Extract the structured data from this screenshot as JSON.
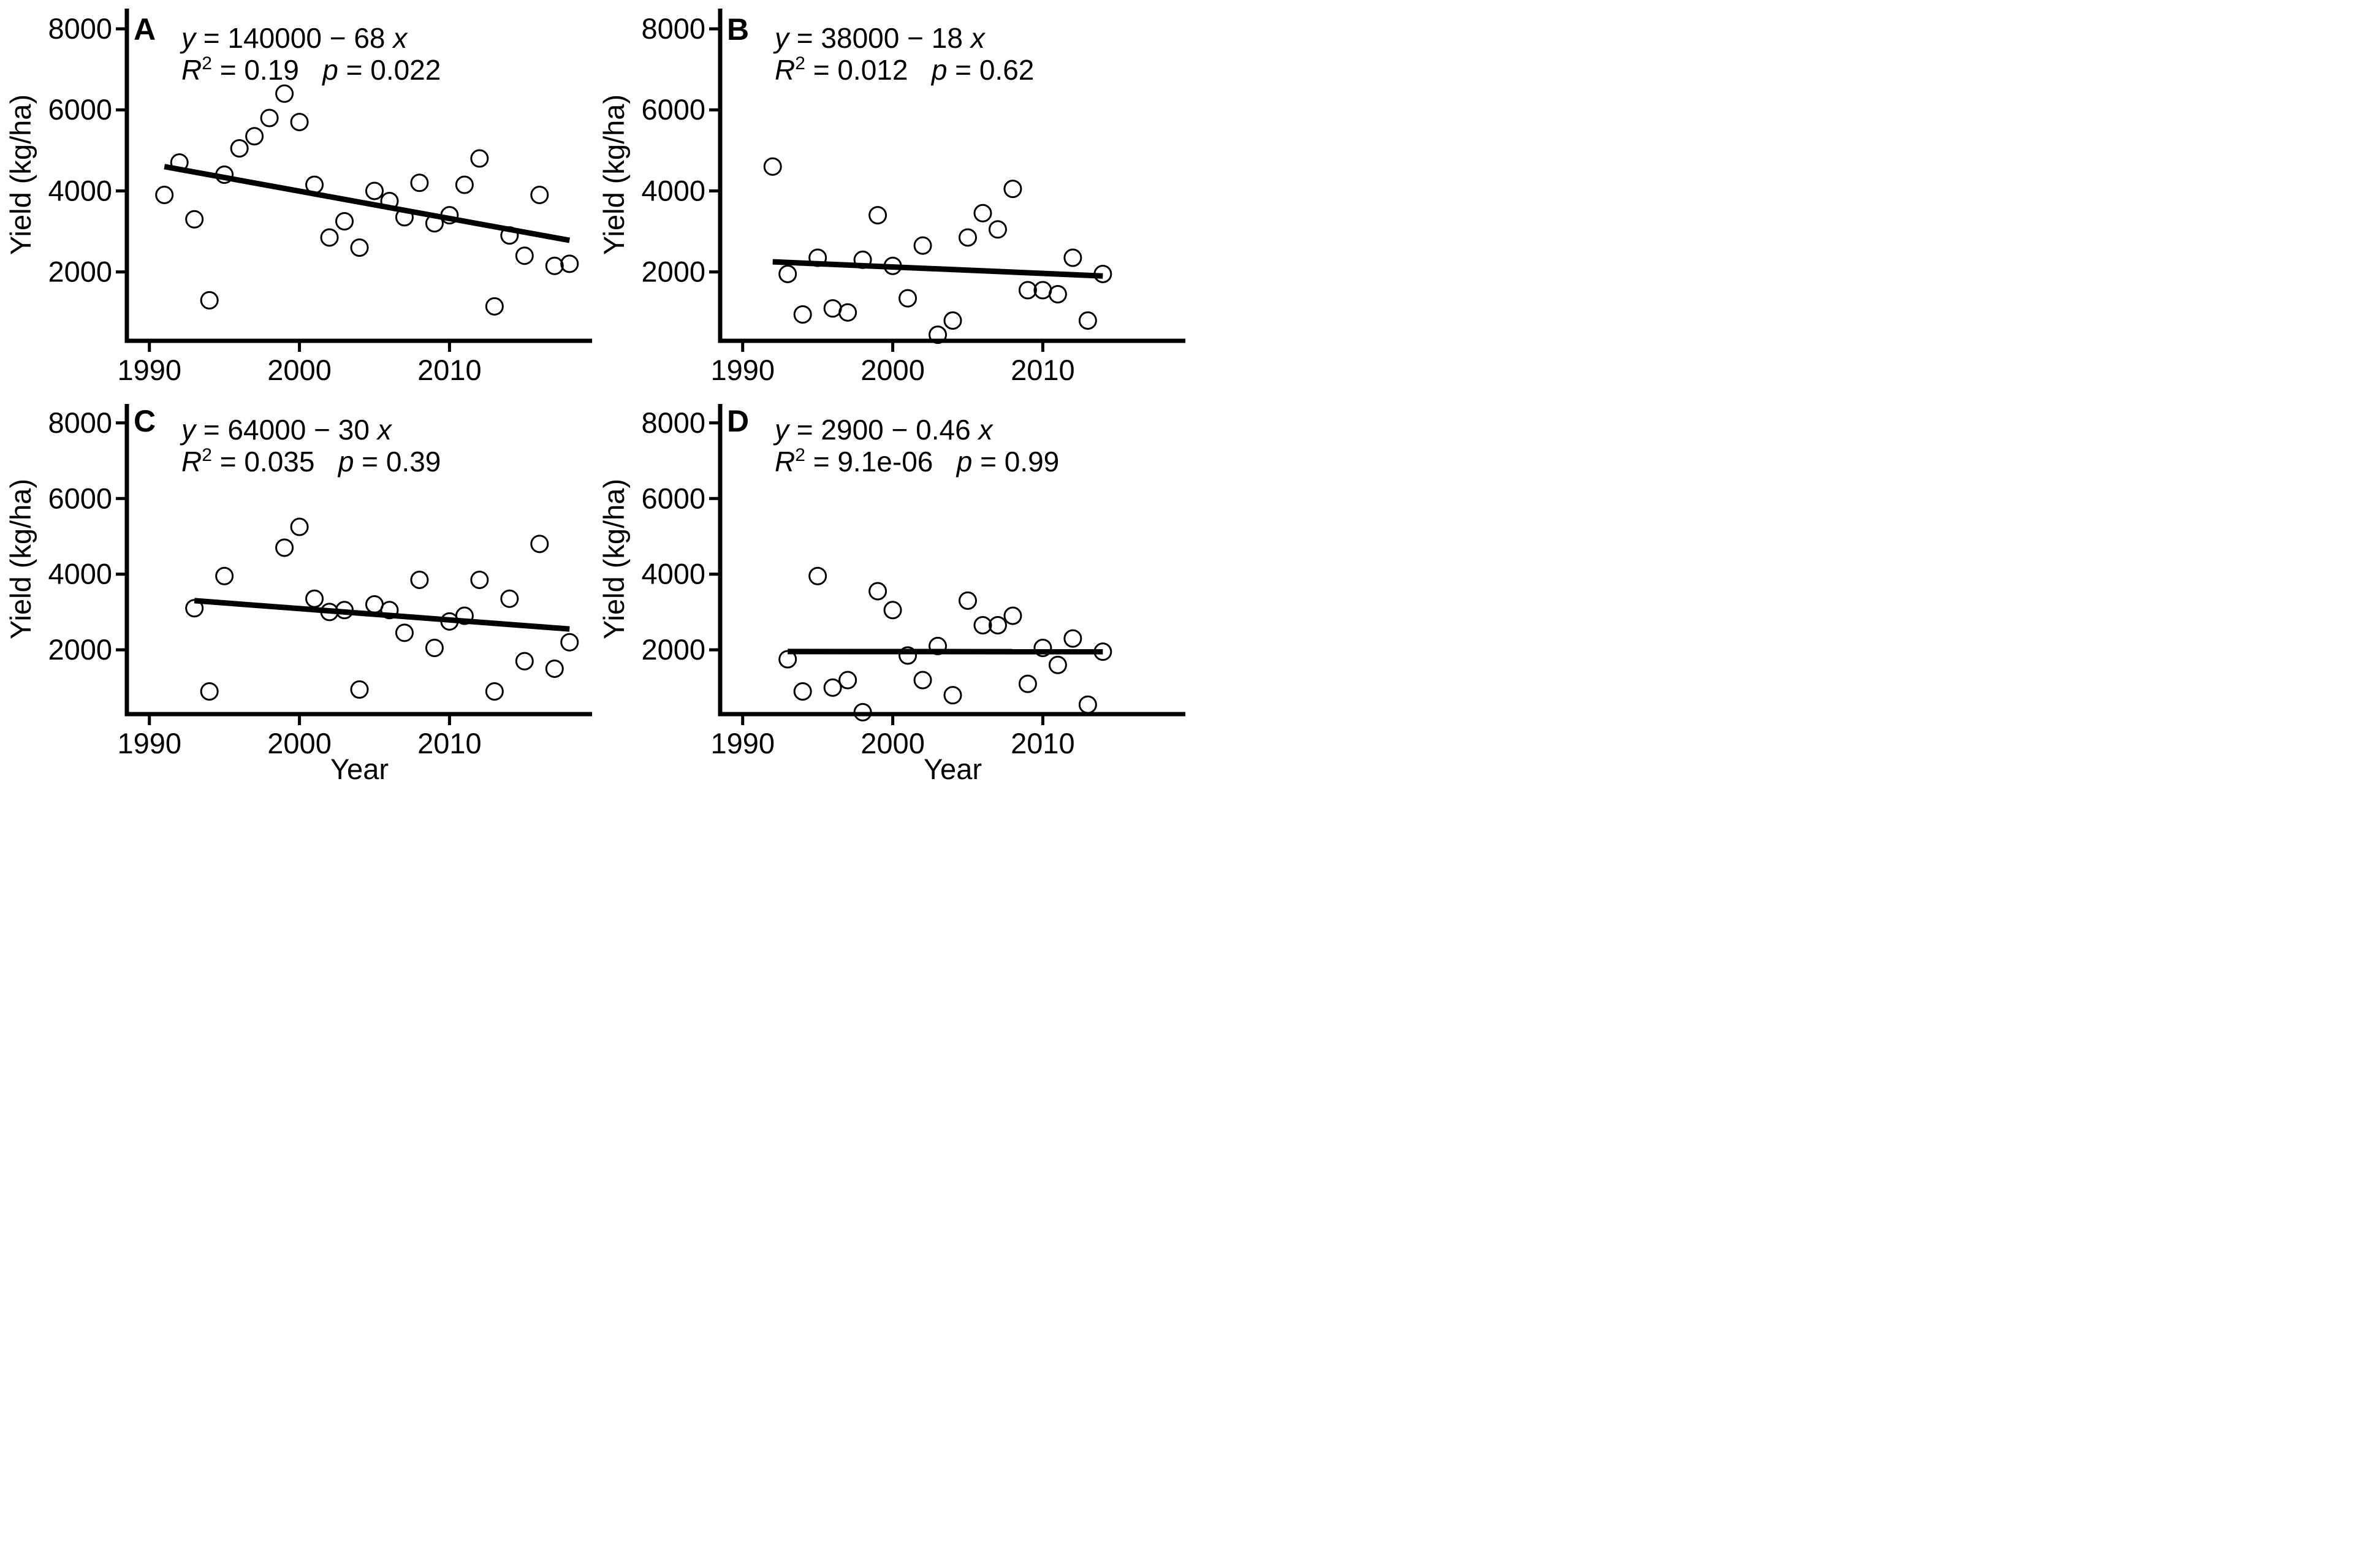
{
  "figure": {
    "background": "#ffffff",
    "foreground": "#000000",
    "point_style": "open-circle",
    "regression_line_color": "#000000"
  },
  "axes": {
    "x_label": "Year",
    "y_label": "Yield (kg/ha)",
    "x_ticks": [
      "1990",
      "2000",
      "2010"
    ],
    "y_ticks": [
      "2000",
      "4000",
      "6000",
      "8000"
    ],
    "x_domain": [
      1988.5,
      2019.5
    ],
    "y_domain": [
      300,
      8500
    ],
    "grid": "off",
    "legend": "none"
  },
  "chart_data": [
    {
      "panel": "A",
      "type": "scatter",
      "position": "top-left",
      "equation": {
        "lhs": "y",
        "rhs": "140000 − 68",
        "var": "x"
      },
      "r_squared": "0.19",
      "p_value": "0.022",
      "regression_line": {
        "x": [
          1991,
          2018
        ],
        "y": [
          4600,
          2780
        ]
      },
      "points": [
        [
          1991,
          3900
        ],
        [
          1992,
          4700
        ],
        [
          1993,
          3300
        ],
        [
          1994,
          1300
        ],
        [
          1995,
          4400
        ],
        [
          1996,
          5050
        ],
        [
          1997,
          5350
        ],
        [
          1998,
          5800
        ],
        [
          1999,
          6400
        ],
        [
          2000,
          5700
        ],
        [
          2001,
          4150
        ],
        [
          2002,
          2850
        ],
        [
          2003,
          3250
        ],
        [
          2004,
          2600
        ],
        [
          2005,
          4000
        ],
        [
          2006,
          3750
        ],
        [
          2007,
          3350
        ],
        [
          2008,
          4200
        ],
        [
          2009,
          3200
        ],
        [
          2010,
          3400
        ],
        [
          2011,
          4150
        ],
        [
          2012,
          4800
        ],
        [
          2013,
          1150
        ],
        [
          2014,
          2900
        ],
        [
          2015,
          2400
        ],
        [
          2016,
          3900
        ],
        [
          2017,
          2150
        ],
        [
          2018,
          2200
        ]
      ]
    },
    {
      "panel": "B",
      "type": "scatter",
      "position": "top-right",
      "equation": {
        "lhs": "y",
        "rhs": "38000 − 18",
        "var": "x"
      },
      "r_squared": "0.012",
      "p_value": "0.62",
      "regression_line": {
        "x": [
          1992,
          2014
        ],
        "y": [
          2250,
          1900
        ]
      },
      "points": [
        [
          1992,
          4600
        ],
        [
          1993,
          1950
        ],
        [
          1994,
          950
        ],
        [
          1995,
          2350
        ],
        [
          1996,
          1100
        ],
        [
          1997,
          1000
        ],
        [
          1998,
          2300
        ],
        [
          1999,
          3400
        ],
        [
          2000,
          2150
        ],
        [
          2001,
          1350
        ],
        [
          2002,
          2650
        ],
        [
          2003,
          450
        ],
        [
          2004,
          800
        ],
        [
          2005,
          2850
        ],
        [
          2006,
          3450
        ],
        [
          2007,
          3050
        ],
        [
          2008,
          4050
        ],
        [
          2009,
          1550
        ],
        [
          2010,
          1550
        ],
        [
          2011,
          1450
        ],
        [
          2012,
          2350
        ],
        [
          2013,
          800
        ],
        [
          2014,
          1950
        ]
      ]
    },
    {
      "panel": "C",
      "type": "scatter",
      "position": "bottom-left",
      "equation": {
        "lhs": "y",
        "rhs": "64000 − 30",
        "var": "x"
      },
      "r_squared": "0.035",
      "p_value": "0.39",
      "regression_line": {
        "x": [
          1993,
          2018
        ],
        "y": [
          3300,
          2550
        ]
      },
      "points": [
        [
          1993,
          3100
        ],
        [
          1994,
          900
        ],
        [
          1995,
          3950
        ],
        [
          1999,
          4700
        ],
        [
          2000,
          5250
        ],
        [
          2001,
          3350
        ],
        [
          2002,
          3000
        ],
        [
          2003,
          3050
        ],
        [
          2004,
          950
        ],
        [
          2005,
          3200
        ],
        [
          2006,
          3050
        ],
        [
          2007,
          2450
        ],
        [
          2008,
          3850
        ],
        [
          2009,
          2050
        ],
        [
          2010,
          2750
        ],
        [
          2011,
          2900
        ],
        [
          2012,
          3850
        ],
        [
          2013,
          900
        ],
        [
          2014,
          3350
        ],
        [
          2015,
          1700
        ],
        [
          2016,
          4800
        ],
        [
          2017,
          1500
        ],
        [
          2018,
          2200
        ]
      ]
    },
    {
      "panel": "D",
      "type": "scatter",
      "position": "bottom-right",
      "equation": {
        "lhs": "y",
        "rhs": "2900 − 0.46",
        "var": "x"
      },
      "r_squared": "9.1e-06",
      "p_value": "0.99",
      "regression_line": {
        "x": [
          1993,
          2014
        ],
        "y": [
          1955,
          1950
        ]
      },
      "points": [
        [
          1993,
          1750
        ],
        [
          1994,
          900
        ],
        [
          1995,
          3950
        ],
        [
          1996,
          1000
        ],
        [
          1997,
          1200
        ],
        [
          1998,
          350
        ],
        [
          1999,
          3550
        ],
        [
          2000,
          3050
        ],
        [
          2001,
          1850
        ],
        [
          2002,
          1200
        ],
        [
          2003,
          2100
        ],
        [
          2004,
          800
        ],
        [
          2005,
          3300
        ],
        [
          2006,
          2650
        ],
        [
          2007,
          2650
        ],
        [
          2008,
          2900
        ],
        [
          2009,
          1100
        ],
        [
          2010,
          2050
        ],
        [
          2011,
          1600
        ],
        [
          2012,
          2300
        ],
        [
          2013,
          550
        ],
        [
          2014,
          1950
        ]
      ]
    }
  ]
}
